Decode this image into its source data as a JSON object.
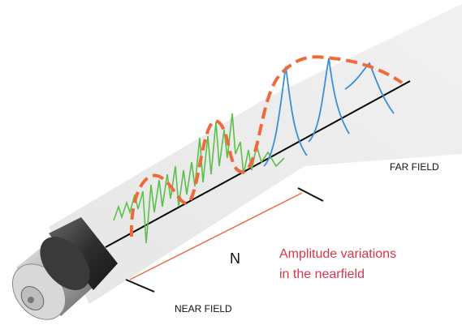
{
  "labels": {
    "far_field": "FAR FIELD",
    "n": "N",
    "annotation": [
      "Amplitude variations",
      "in the nearfield"
    ],
    "near_field": "NEAR FIELD"
  }
}
